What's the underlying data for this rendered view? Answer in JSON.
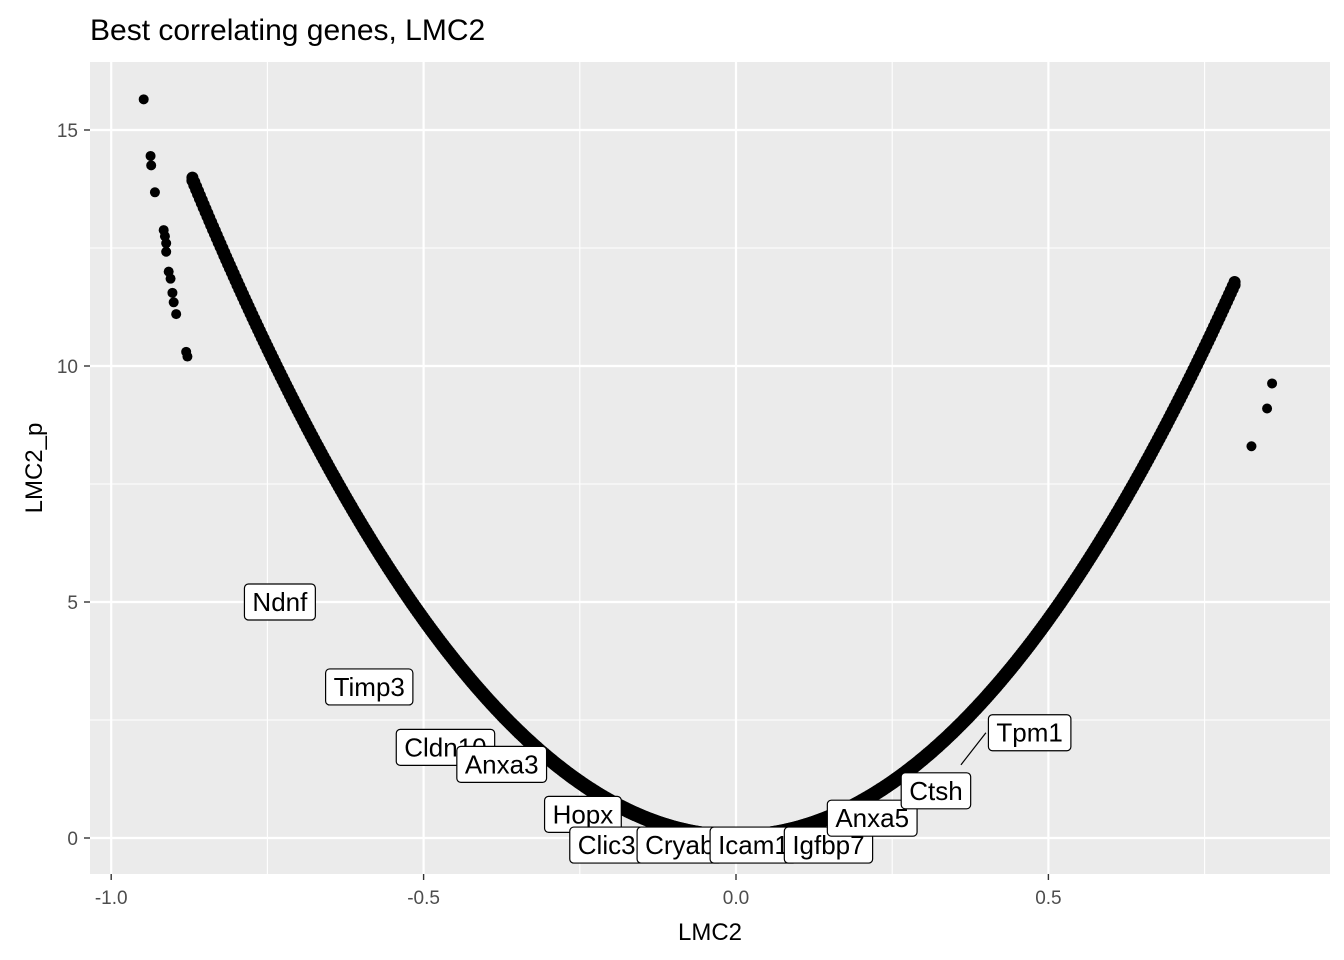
{
  "chart_data": {
    "type": "scatter",
    "title": "Best correlating genes, LMC2",
    "xlabel": "LMC2",
    "ylabel": "LMC2_p",
    "xlim": [
      -1.04,
      1.0
    ],
    "ylim": [
      -0.75,
      16.4
    ],
    "xticks": [
      -1.0,
      -0.5,
      0.0,
      0.5
    ],
    "xtick_labels": [
      "-1.0",
      "-0.5",
      "0.0",
      "0.5"
    ],
    "yticks": [
      0,
      5,
      10,
      15
    ],
    "ytick_labels": [
      "0",
      "5",
      "10",
      "15"
    ],
    "grid": true,
    "background": "#ebebeb",
    "grid_color": "#ffffff",
    "point_color": "#000000",
    "curve_description": "dense band of points following y ≈ 18.4·x² for x in [-0.95, 0.87]",
    "isolated_points": [
      {
        "x": -0.948,
        "y": 15.65
      },
      {
        "x": -0.937,
        "y": 14.45
      },
      {
        "x": -0.936,
        "y": 14.25
      },
      {
        "x": -0.93,
        "y": 13.68
      },
      {
        "x": -0.916,
        "y": 12.88
      },
      {
        "x": -0.914,
        "y": 12.75
      },
      {
        "x": -0.912,
        "y": 12.6
      },
      {
        "x": -0.912,
        "y": 12.42
      },
      {
        "x": -0.908,
        "y": 12.0
      },
      {
        "x": -0.905,
        "y": 11.85
      },
      {
        "x": -0.902,
        "y": 11.55
      },
      {
        "x": -0.9,
        "y": 11.35
      },
      {
        "x": -0.896,
        "y": 11.1
      },
      {
        "x": -0.88,
        "y": 10.3
      },
      {
        "x": -0.878,
        "y": 10.2
      },
      {
        "x": 0.858,
        "y": 9.63
      },
      {
        "x": 0.85,
        "y": 9.1
      },
      {
        "x": 0.825,
        "y": 8.3
      }
    ],
    "labels": [
      {
        "text": "Ndnf",
        "x": -0.73,
        "y": 5.0
      },
      {
        "text": "Timp3",
        "x": -0.587,
        "y": 3.2
      },
      {
        "text": "Cldn10",
        "x": -0.465,
        "y": 1.92
      },
      {
        "text": "Anxa3",
        "x": -0.375,
        "y": 1.56
      },
      {
        "text": "Hopx",
        "x": -0.245,
        "y": 0.5
      },
      {
        "text": "Clic3",
        "x": -0.207,
        "y": -0.15
      },
      {
        "text": "Cryab",
        "x": -0.09,
        "y": -0.15
      },
      {
        "text": "Icam1",
        "x": 0.028,
        "y": -0.15
      },
      {
        "text": "Igfbp7",
        "x": 0.148,
        "y": -0.15
      },
      {
        "text": "Anxa5",
        "x": 0.218,
        "y": 0.42
      },
      {
        "text": "Ctsh",
        "x": 0.32,
        "y": 1.0
      },
      {
        "text": "Tpm1",
        "x": 0.47,
        "y": 2.23
      }
    ],
    "label_leaders": [
      {
        "from_x": 0.4,
        "from_y": 2.23,
        "to_x": 0.36,
        "to_y": 1.55
      }
    ]
  }
}
